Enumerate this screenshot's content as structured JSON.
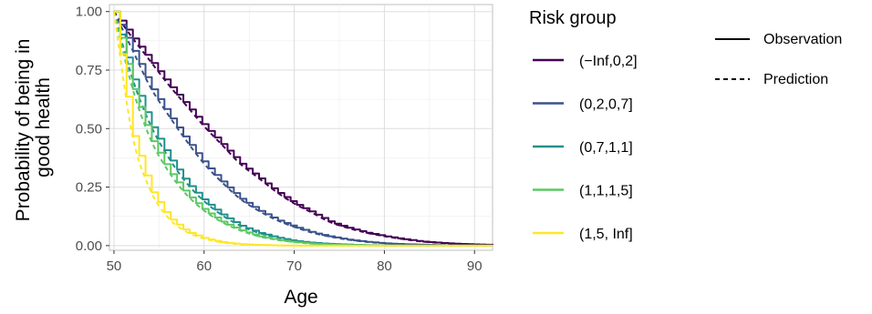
{
  "chart_data": {
    "type": "line",
    "xlabel": "Age",
    "ylabel_lines": [
      "Probability of being in",
      "good health"
    ],
    "xlim": [
      49.5,
      92
    ],
    "ylim": [
      -0.02,
      1.03
    ],
    "x_ticks": [
      50,
      60,
      70,
      80,
      90
    ],
    "x_tick_labels": [
      "50",
      "60",
      "70",
      "80",
      "90"
    ],
    "y_ticks": [
      0,
      0.25,
      0.5,
      0.75,
      1
    ],
    "y_tick_labels": [
      "0.00",
      "0.25",
      "0.50",
      "0.75",
      "1.00"
    ],
    "grid": true,
    "legend": {
      "title": "Risk group",
      "placement": "right",
      "linetype_entries": [
        {
          "label": "Observation",
          "dash": "solid"
        },
        {
          "label": "Prediction",
          "dash": "dashed"
        }
      ]
    },
    "x": [
      50,
      52,
      54,
      56,
      58,
      60,
      62,
      64,
      66,
      68,
      70,
      72,
      74,
      76,
      78,
      80,
      82,
      84,
      86,
      88,
      90,
      92
    ],
    "series": [
      {
        "name": "(−Inf,0,2]",
        "color": "#440154",
        "values": [
          1.0,
          0.89,
          0.79,
          0.69,
          0.6,
          0.51,
          0.43,
          0.35,
          0.29,
          0.23,
          0.18,
          0.14,
          0.1,
          0.075,
          0.055,
          0.04,
          0.028,
          0.018,
          0.012,
          0.008,
          0.005,
          0.003
        ]
      },
      {
        "name": "(0,2,0,7]",
        "color": "#3B528B",
        "values": [
          1.0,
          0.84,
          0.68,
          0.56,
          0.45,
          0.35,
          0.27,
          0.2,
          0.15,
          0.11,
          0.08,
          0.055,
          0.038,
          0.025,
          0.016,
          0.01,
          0.006,
          0.004,
          0.002,
          0.001,
          0.0,
          0.0
        ]
      },
      {
        "name": "(0,7,1,1]",
        "color": "#21908C",
        "values": [
          1.0,
          0.72,
          0.52,
          0.38,
          0.27,
          0.19,
          0.13,
          0.085,
          0.055,
          0.035,
          0.02,
          0.012,
          0.007,
          0.004,
          0.002,
          0.001,
          0.0,
          0.0,
          0.0,
          0.0,
          0.0,
          0.0
        ]
      },
      {
        "name": "(1,1,1,5]",
        "color": "#5DC863",
        "values": [
          1.0,
          0.68,
          0.46,
          0.32,
          0.22,
          0.15,
          0.1,
          0.065,
          0.04,
          0.025,
          0.015,
          0.008,
          0.004,
          0.002,
          0.001,
          0.0,
          0.0,
          0.0,
          0.0,
          0.0,
          0.0,
          0.0
        ]
      },
      {
        "name": "(1,5, Inf]",
        "color": "#FDE725",
        "values": [
          1.0,
          0.48,
          0.24,
          0.12,
          0.06,
          0.03,
          0.014,
          0.006,
          0.003,
          0.001,
          0.0,
          0.0,
          0.0,
          0.0,
          0.0,
          0.0,
          0.0,
          0.0,
          0.0,
          0.0,
          0.0,
          0.0
        ]
      }
    ]
  }
}
